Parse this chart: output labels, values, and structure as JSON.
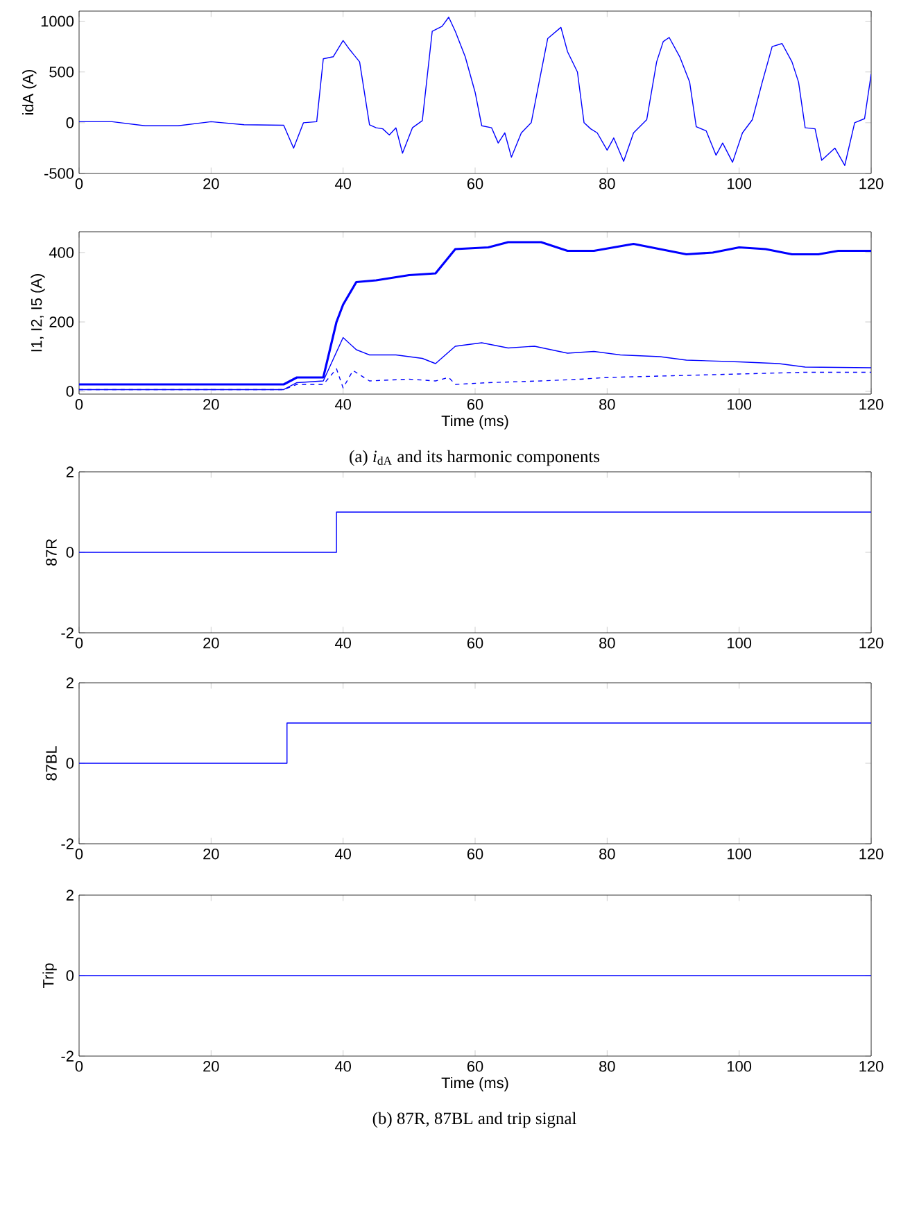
{
  "chart_data": [
    {
      "type": "line",
      "ylabel": "idA (A)",
      "xlim": [
        0,
        120
      ],
      "ylim": [
        -500,
        1100
      ],
      "xticks": [
        0,
        20,
        40,
        60,
        80,
        100,
        120
      ],
      "yticks": [
        -500,
        0,
        500,
        1000
      ],
      "color": "#0000ff",
      "x": [
        0,
        5,
        10,
        15,
        20,
        25,
        31,
        32.5,
        34,
        36,
        37,
        38.5,
        40,
        41,
        42.5,
        44,
        45,
        46,
        47,
        48,
        49,
        50.5,
        52,
        53.5,
        55,
        56,
        57,
        58.5,
        60,
        61,
        62.5,
        63.5,
        64.5,
        65.5,
        67,
        68.5,
        70,
        71,
        73,
        74,
        75.5,
        76.5,
        77.5,
        78.5,
        80,
        81,
        82.5,
        84,
        86,
        87.5,
        88.5,
        89.4,
        91,
        92.5,
        93.5,
        95,
        96.5,
        97.5,
        99,
        100.5,
        102,
        103.5,
        105,
        106.5,
        108,
        109,
        110,
        111.5,
        112.5,
        114.5,
        116,
        117.5,
        119,
        120
      ],
      "values": [
        10,
        10,
        -30,
        -30,
        10,
        -20,
        -25,
        -250,
        0,
        10,
        630,
        650,
        810,
        720,
        600,
        -20,
        -50,
        -60,
        -120,
        -50,
        -300,
        -50,
        20,
        900,
        950,
        1040,
        900,
        650,
        300,
        -30,
        -50,
        -200,
        -100,
        -340,
        -100,
        0,
        500,
        830,
        940,
        700,
        500,
        0,
        -60,
        -100,
        -270,
        -150,
        -380,
        -100,
        30,
        600,
        800,
        840,
        650,
        400,
        -40,
        -80,
        -320,
        -200,
        -390,
        -100,
        30,
        400,
        750,
        780,
        600,
        400,
        -50,
        -60,
        -370,
        -250,
        -420,
        0,
        40,
        480
      ]
    },
    {
      "type": "line",
      "ylabel": "I1, I2, I5 (A)",
      "xlabel": "Time (ms)",
      "xlim": [
        0,
        120
      ],
      "ylim": [
        -8,
        460
      ],
      "xticks": [
        0,
        20,
        40,
        60,
        80,
        100,
        120
      ],
      "yticks": [
        0,
        200,
        400
      ],
      "annotations": [
        "(a) *i*$_{dA}$ and its harmonic components"
      ],
      "series": [
        {
          "color": "#0000ff",
          "line_style": "solid",
          "x": [
            0,
            31,
            33,
            37,
            39,
            40,
            42,
            45,
            50,
            54,
            57,
            62,
            65,
            70,
            74,
            78,
            84,
            88,
            92,
            96,
            100,
            104,
            108,
            112,
            115,
            120
          ],
          "values": [
            20,
            20,
            40,
            40,
            200,
            250,
            315,
            320,
            335,
            340,
            410,
            415,
            430,
            430,
            405,
            405,
            425,
            410,
            395,
            400,
            415,
            410,
            395,
            395,
            405,
            405
          ]
        },
        {
          "color": "#0000ff",
          "line_style": "solid",
          "x": [
            0,
            31,
            33,
            37,
            40,
            42,
            44,
            48,
            52,
            54,
            57,
            61,
            65,
            69,
            74,
            78,
            82,
            88,
            92,
            100,
            106,
            110,
            120
          ],
          "values": [
            5,
            5,
            25,
            30,
            155,
            120,
            105,
            105,
            95,
            80,
            130,
            140,
            125,
            130,
            110,
            115,
            105,
            100,
            90,
            85,
            80,
            70,
            68
          ]
        },
        {
          "color": "#0000ff",
          "line_style": "dashed",
          "x": [
            0,
            31,
            33,
            37,
            39,
            40,
            41.5,
            44,
            50,
            54,
            56,
            57,
            62,
            70,
            76,
            80,
            90,
            100,
            110,
            120
          ],
          "values": [
            5,
            5,
            20,
            20,
            65,
            10,
            60,
            30,
            35,
            30,
            40,
            20,
            25,
            30,
            35,
            40,
            45,
            50,
            55,
            55
          ]
        }
      ]
    },
    {
      "type": "step",
      "ylabel": "87R",
      "xlim": [
        0,
        120
      ],
      "ylim": [
        -2,
        2
      ],
      "xticks": [
        0,
        20,
        40,
        60,
        80,
        100,
        120
      ],
      "yticks": [
        -2,
        0,
        2
      ],
      "color": "#0000ff",
      "x": [
        0,
        39,
        120
      ],
      "values": [
        0,
        1,
        1
      ]
    },
    {
      "type": "step",
      "ylabel": "87BL",
      "xlim": [
        0,
        120
      ],
      "ylim": [
        -2,
        2
      ],
      "xticks": [
        0,
        20,
        40,
        60,
        80,
        100,
        120
      ],
      "yticks": [
        -2,
        0,
        2
      ],
      "color": "#0000ff",
      "x": [
        0,
        31.5,
        120
      ],
      "values": [
        0,
        1,
        1
      ]
    },
    {
      "type": "step",
      "ylabel": "Trip",
      "xlabel": "Time (ms)",
      "xlim": [
        0,
        120
      ],
      "ylim": [
        -2,
        2
      ],
      "xticks": [
        0,
        20,
        40,
        60,
        80,
        100,
        120
      ],
      "yticks": [
        -2,
        0,
        2
      ],
      "color": "#0000ff",
      "x": [
        0,
        120
      ],
      "values": [
        0,
        0
      ],
      "annotations": [
        "(b) 87R, 87BL and trip signal"
      ]
    }
  ]
}
